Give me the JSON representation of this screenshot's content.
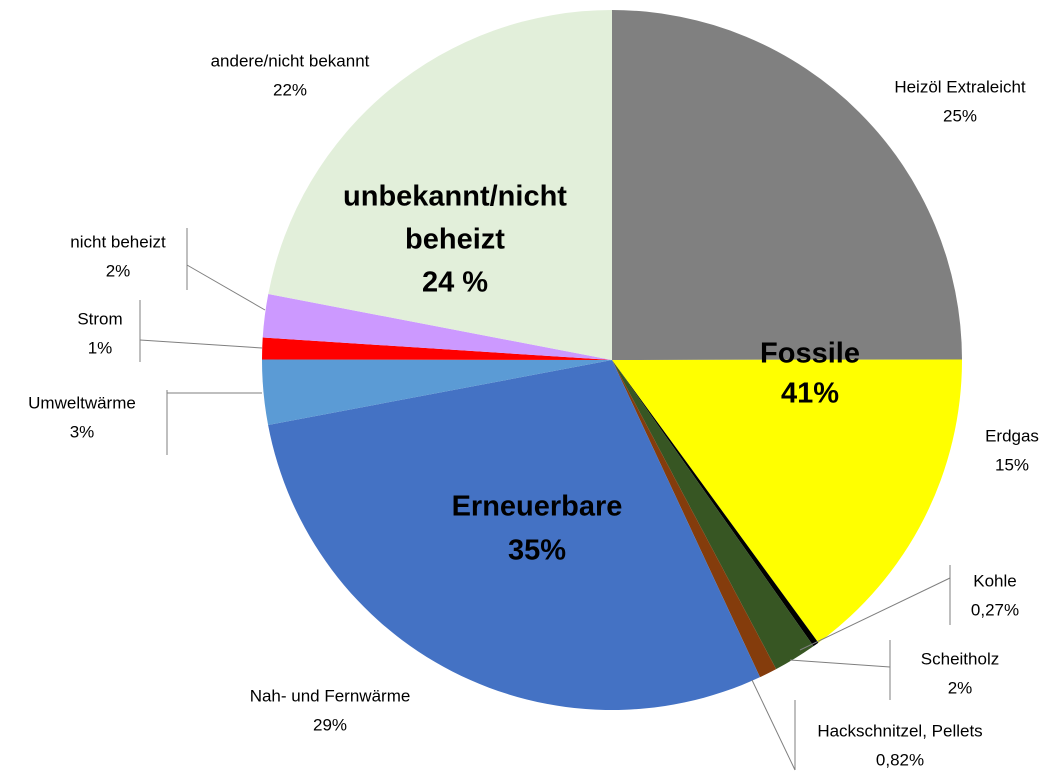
{
  "chart_data": {
    "type": "pie",
    "categories": [
      "Heizöl Extraleicht",
      "Erdgas",
      "Kohle",
      "Scheitholz",
      "Hackschnitzel, Pellets",
      "Nah- und Fernwärme",
      "Umweltwärme",
      "Strom",
      "nicht beheizt",
      "andere/nicht bekannt"
    ],
    "values": [
      25,
      15,
      0.27,
      2,
      0.82,
      29,
      3,
      1,
      2,
      22
    ],
    "value_labels": [
      "25%",
      "15%",
      "0,27%",
      "2%",
      "0,82%",
      "29%",
      "3%",
      "1%",
      "2%",
      "22%"
    ],
    "colors": [
      "#808080",
      "#ffff00",
      "#000000",
      "#375623",
      "#843c0c",
      "#4472c4",
      "#5b9bd5",
      "#ff0000",
      "#cc99ff",
      "#e2efda"
    ],
    "annotations": [
      {
        "lines": [
          "Fossile",
          "41%"
        ]
      },
      {
        "lines": [
          "Erneuerbare",
          "35%"
        ]
      },
      {
        "lines": [
          "unbekannt/nicht",
          "beheizt",
          "24 %"
        ]
      }
    ]
  }
}
